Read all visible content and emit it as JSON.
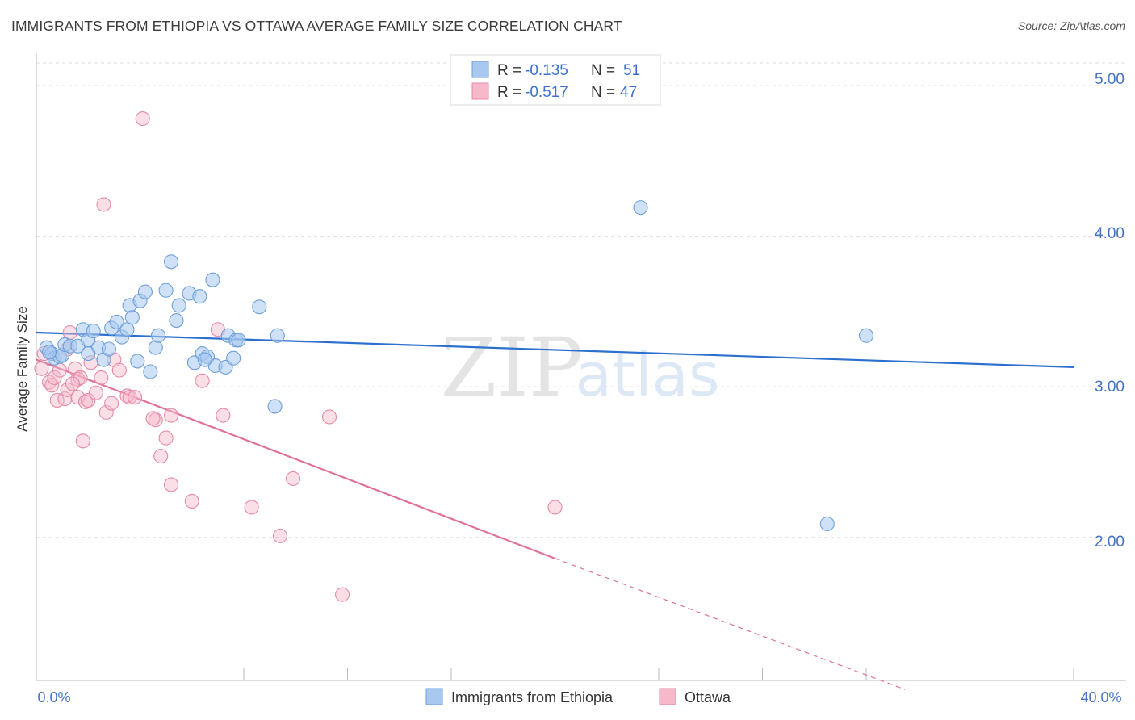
{
  "title": "IMMIGRANTS FROM ETHIOPIA VS OTTAWA AVERAGE FAMILY SIZE CORRELATION CHART",
  "source": "Source: ZipAtlas.com",
  "watermark": {
    "zip": "ZIP",
    "atlas": "atlas"
  },
  "colors": {
    "blue_fill": "#a8c8f0",
    "blue_stroke": "#6e9fd8",
    "blue_line": "#2b6fcf",
    "pink_fill": "#f7b8ca",
    "pink_stroke": "#e58aa6",
    "pink_line": "#e0709a",
    "axis_text": "#4472c4",
    "grid": "#dddddd"
  },
  "legend": {
    "rows": [
      {
        "r_label": "R =",
        "r_value": "-0.135",
        "n_label": "N =",
        "n_value": "51"
      },
      {
        "r_label": "R =",
        "r_value": "-0.517",
        "n_label": "N =",
        "n_value": "47"
      }
    ]
  },
  "bottom_legend": [
    "Immigrants from Ethiopia",
    "Ottawa"
  ],
  "chart_data": {
    "type": "scatter",
    "title": "IMMIGRANTS FROM ETHIOPIA VS OTTAWA AVERAGE FAMILY SIZE CORRELATION CHART",
    "xlabel": "",
    "ylabel": "Average Family Size",
    "xlim": [
      0,
      40
    ],
    "ylim": [
      1.05,
      5.15
    ],
    "x_tick_labels": [
      "0.0%",
      "40.0%"
    ],
    "y_ticks": [
      2,
      3,
      4,
      5
    ],
    "y_tick_labels": [
      "2.00",
      "3.00",
      "4.00",
      "5.00"
    ],
    "series": [
      {
        "name": "Immigrants from Ethiopia",
        "r": -0.135,
        "n": 51,
        "trend": {
          "x0": 0,
          "y0": 3.36,
          "x1": 40,
          "y1": 3.13
        },
        "points": [
          [
            0.4,
            3.26
          ],
          [
            0.6,
            3.22
          ],
          [
            0.7,
            3.19
          ],
          [
            0.9,
            3.2
          ],
          [
            1.0,
            3.21
          ],
          [
            1.1,
            3.28
          ],
          [
            1.3,
            3.27
          ],
          [
            1.6,
            3.27
          ],
          [
            1.8,
            3.38
          ],
          [
            2.0,
            3.31
          ],
          [
            2.2,
            3.37
          ],
          [
            2.4,
            3.26
          ],
          [
            2.6,
            3.18
          ],
          [
            2.8,
            3.25
          ],
          [
            2.9,
            3.39
          ],
          [
            3.1,
            3.43
          ],
          [
            3.3,
            3.33
          ],
          [
            3.5,
            3.38
          ],
          [
            3.6,
            3.54
          ],
          [
            3.7,
            3.46
          ],
          [
            3.9,
            3.17
          ],
          [
            4.0,
            3.57
          ],
          [
            4.2,
            3.63
          ],
          [
            4.4,
            3.1
          ],
          [
            4.6,
            3.26
          ],
          [
            4.7,
            3.34
          ],
          [
            5.0,
            3.64
          ],
          [
            5.2,
            3.83
          ],
          [
            5.4,
            3.44
          ],
          [
            5.5,
            3.54
          ],
          [
            5.9,
            3.62
          ],
          [
            6.1,
            3.16
          ],
          [
            6.3,
            3.6
          ],
          [
            6.4,
            3.22
          ],
          [
            6.6,
            3.2
          ],
          [
            6.8,
            3.71
          ],
          [
            6.9,
            3.14
          ],
          [
            7.3,
            3.13
          ],
          [
            7.4,
            3.34
          ],
          [
            7.6,
            3.19
          ],
          [
            7.7,
            3.31
          ],
          [
            7.8,
            3.31
          ],
          [
            8.6,
            3.53
          ],
          [
            9.2,
            2.87
          ],
          [
            9.3,
            3.34
          ],
          [
            23.3,
            4.19
          ],
          [
            30.5,
            2.09
          ],
          [
            32.0,
            3.34
          ],
          [
            0.5,
            3.23
          ],
          [
            2.0,
            3.22
          ],
          [
            6.5,
            3.18
          ]
        ]
      },
      {
        "name": "Ottawa",
        "r": -0.517,
        "n": 47,
        "trend": {
          "x0": 0,
          "y0": 3.18,
          "x1": 20,
          "y1": 1.86
        },
        "trend_dashed": {
          "x0": 20,
          "y0": 1.86,
          "x1": 33.5,
          "y1": 0.99
        },
        "points": [
          [
            0.2,
            3.12
          ],
          [
            0.3,
            3.22
          ],
          [
            0.5,
            3.03
          ],
          [
            0.6,
            3.01
          ],
          [
            0.7,
            3.06
          ],
          [
            0.8,
            2.91
          ],
          [
            0.9,
            3.11
          ],
          [
            1.1,
            2.92
          ],
          [
            1.2,
            3.25
          ],
          [
            1.2,
            2.98
          ],
          [
            1.3,
            3.36
          ],
          [
            1.5,
            3.12
          ],
          [
            1.6,
            2.93
          ],
          [
            1.6,
            3.05
          ],
          [
            1.7,
            3.06
          ],
          [
            1.8,
            2.64
          ],
          [
            1.9,
            2.9
          ],
          [
            2.0,
            2.91
          ],
          [
            2.1,
            3.16
          ],
          [
            2.3,
            2.96
          ],
          [
            2.5,
            3.06
          ],
          [
            2.6,
            4.21
          ],
          [
            2.7,
            2.83
          ],
          [
            2.9,
            2.89
          ],
          [
            3.0,
            3.18
          ],
          [
            3.2,
            3.11
          ],
          [
            3.5,
            2.94
          ],
          [
            3.6,
            2.93
          ],
          [
            4.1,
            4.78
          ],
          [
            4.6,
            2.78
          ],
          [
            4.8,
            2.54
          ],
          [
            5.0,
            2.66
          ],
          [
            5.2,
            2.35
          ],
          [
            5.2,
            2.81
          ],
          [
            6.0,
            2.24
          ],
          [
            6.4,
            3.04
          ],
          [
            7.0,
            3.38
          ],
          [
            7.2,
            2.81
          ],
          [
            8.3,
            2.2
          ],
          [
            9.4,
            2.01
          ],
          [
            9.9,
            2.39
          ],
          [
            11.3,
            2.8
          ],
          [
            11.8,
            1.62
          ],
          [
            20.0,
            2.2
          ],
          [
            4.5,
            2.79
          ],
          [
            3.8,
            2.93
          ],
          [
            1.4,
            3.02
          ]
        ]
      }
    ]
  }
}
